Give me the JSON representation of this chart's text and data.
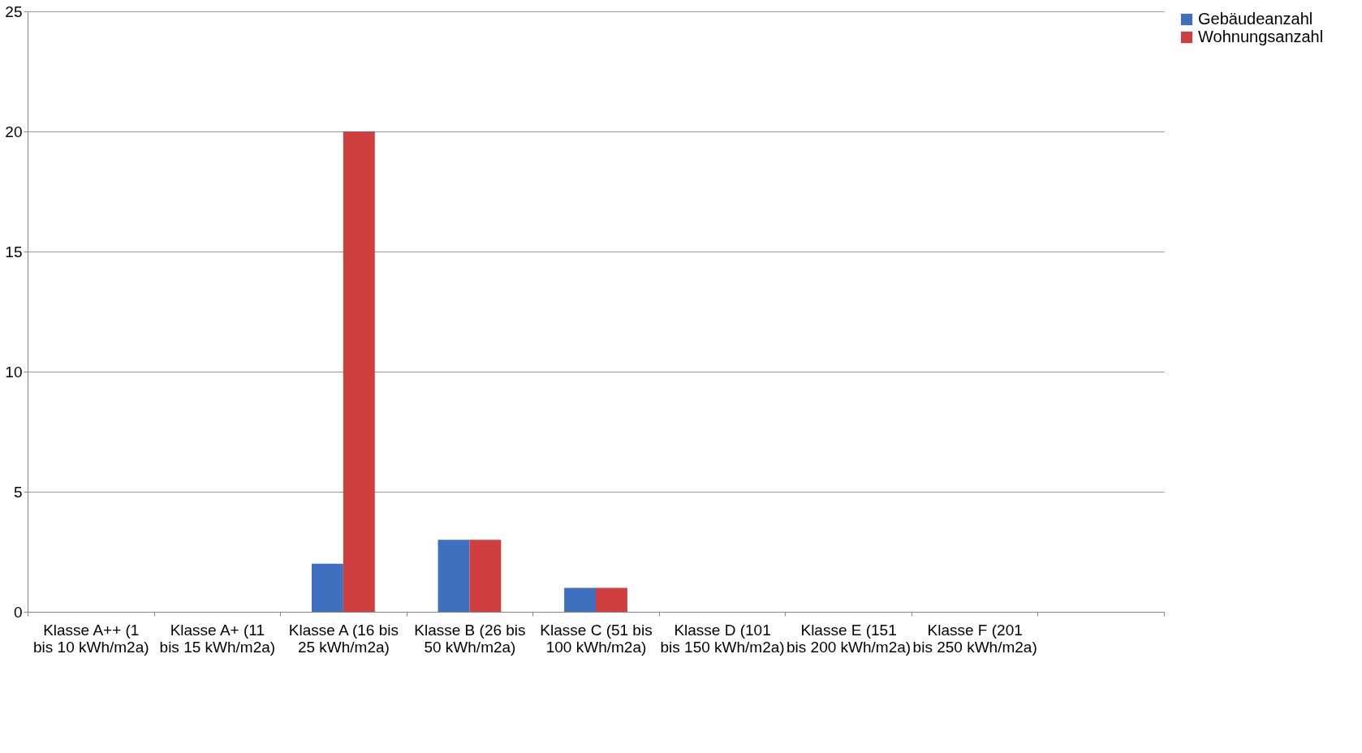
{
  "chart_data": {
    "type": "bar",
    "categories": [
      "Klasse A++ (1 bis 10 kWh/m2a)",
      "Klasse A+ (11 bis 15 kWh/m2a)",
      "Klasse A (16 bis 25 kWh/m2a)",
      "Klasse B (26 bis 50 kWh/m2a)",
      "Klasse C (51 bis 100 kWh/m2a)",
      "Klasse D (101 bis 150 kWh/m2a)",
      "Klasse E (151 bis 200 kWh/m2a)",
      "Klasse F (201 bis 250 kWh/m2a)",
      null
    ],
    "series": [
      {
        "name": "Gebäudeanzahl",
        "color": "#3f70c0",
        "values": [
          0,
          0,
          2,
          3,
          1,
          0,
          0,
          0,
          0
        ]
      },
      {
        "name": "Wohnungsanzahl",
        "color": "#cf3f3f",
        "values": [
          0,
          0,
          20,
          3,
          1,
          0,
          0,
          0,
          0
        ]
      }
    ],
    "ylim": [
      0,
      25
    ],
    "yticks": [
      0,
      5,
      10,
      15,
      20,
      25
    ],
    "grid": "y",
    "legend": "right"
  }
}
